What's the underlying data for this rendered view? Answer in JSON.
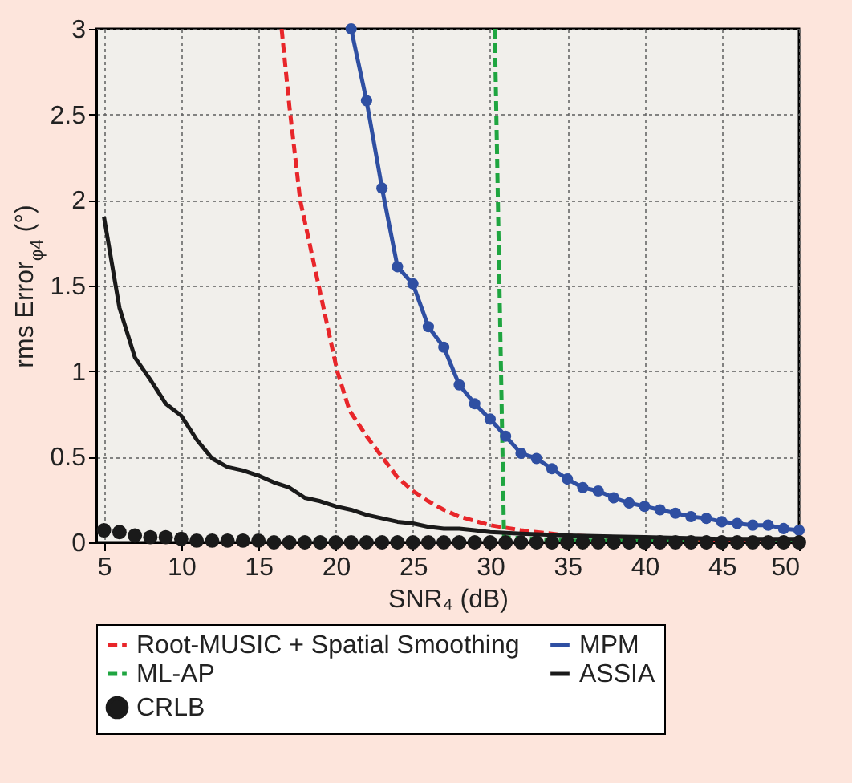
{
  "chart_data": {
    "type": "line",
    "xlabel": "SNR₄ (dB)",
    "ylabel": "rms Error$_{φ4}$ (°)",
    "xlim": [
      4.5,
      50
    ],
    "ylim": [
      0,
      3
    ],
    "xticks": [
      5,
      10,
      15,
      20,
      25,
      30,
      35,
      40,
      45,
      50
    ],
    "yticks": [
      0,
      0.5,
      1,
      1.5,
      2,
      2.5,
      3
    ],
    "grid": true,
    "legend": "bottom",
    "series": [
      {
        "name": "Root-MUSIC + Spatial Smoothing",
        "color": "#e8262a",
        "line_style": "dashed",
        "marker": "none",
        "x": [
          16.5,
          17,
          17.7,
          18.3,
          18.9,
          19.5,
          20.1,
          20.9,
          22,
          23,
          24,
          25,
          26,
          27,
          28,
          30,
          32,
          35,
          40,
          45,
          50
        ],
        "values": [
          3,
          2.55,
          2,
          1.75,
          1.5,
          1.25,
          1,
          0.77,
          0.62,
          0.5,
          0.38,
          0.3,
          0.24,
          0.19,
          0.15,
          0.1,
          0.07,
          0.04,
          0.02,
          0.01,
          0.01
        ]
      },
      {
        "name": "MPM",
        "color": "#2f4fa2",
        "line_style": "solid",
        "marker": "circle",
        "x": [
          21,
          22,
          23,
          24,
          25,
          26,
          27,
          28,
          29,
          30,
          31,
          32,
          33,
          34,
          35,
          36,
          37,
          38,
          39,
          40,
          41,
          42,
          43,
          44,
          45,
          46,
          47,
          48,
          49,
          50
        ],
        "values": [
          3,
          2.58,
          2.07,
          1.61,
          1.51,
          1.26,
          1.14,
          0.92,
          0.81,
          0.72,
          0.62,
          0.52,
          0.49,
          0.43,
          0.37,
          0.32,
          0.3,
          0.26,
          0.23,
          0.21,
          0.19,
          0.17,
          0.15,
          0.14,
          0.12,
          0.11,
          0.1,
          0.1,
          0.08,
          0.07
        ]
      },
      {
        "name": "ML-AP",
        "color": "#1fa540",
        "line_style": "dashed",
        "marker": "none",
        "x": [
          30.3,
          30.9,
          35,
          50
        ],
        "values": [
          3,
          0.03,
          0.01,
          0.01
        ]
      },
      {
        "name": "ASSIA",
        "color": "#1a1a1a",
        "line_style": "solid",
        "marker": "none",
        "x": [
          5,
          6,
          7,
          8,
          9,
          10,
          11,
          12,
          13,
          14,
          15,
          16,
          17,
          18,
          19,
          20,
          21,
          22,
          23,
          24,
          25,
          26,
          27,
          28,
          29,
          30,
          32,
          35,
          40,
          45,
          50
        ],
        "values": [
          1.9,
          1.37,
          1.08,
          0.95,
          0.81,
          0.74,
          0.6,
          0.49,
          0.44,
          0.42,
          0.39,
          0.35,
          0.32,
          0.26,
          0.24,
          0.21,
          0.19,
          0.16,
          0.14,
          0.12,
          0.11,
          0.09,
          0.08,
          0.08,
          0.07,
          0.06,
          0.05,
          0.04,
          0.03,
          0.02,
          0.02
        ]
      },
      {
        "name": "CRLB",
        "color": "#1a1a1a",
        "type": "scatter",
        "marker": "circle",
        "x": [
          5,
          6,
          7,
          8,
          9,
          10,
          11,
          12,
          13,
          14,
          15,
          16,
          17,
          18,
          19,
          20,
          21,
          22,
          23,
          24,
          25,
          26,
          27,
          28,
          29,
          30,
          31,
          32,
          33,
          34,
          35,
          36,
          37,
          38,
          39,
          40,
          41,
          42,
          43,
          44,
          45,
          46,
          47,
          48,
          49,
          50
        ],
        "values": [
          0.07,
          0.06,
          0.04,
          0.03,
          0.03,
          0.02,
          0.01,
          0.01,
          0.01,
          0.01,
          0.01,
          0,
          0,
          0,
          0,
          0,
          0,
          0,
          0,
          0,
          0,
          0,
          0,
          0,
          0,
          0,
          0,
          0,
          0,
          0,
          0,
          0,
          0,
          0,
          0,
          0,
          0,
          0,
          0,
          0,
          0,
          0,
          0,
          0,
          0,
          0
        ]
      }
    ]
  }
}
